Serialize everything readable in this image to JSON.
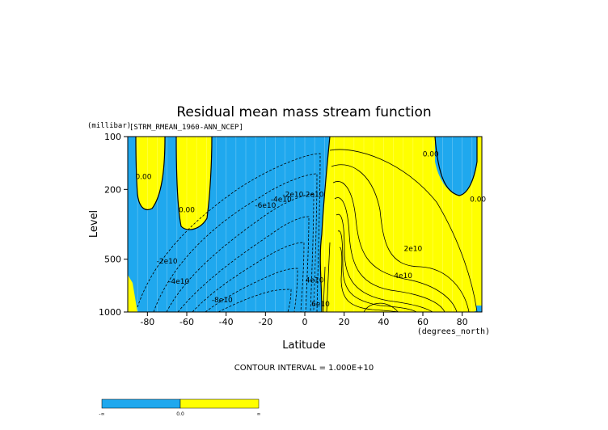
{
  "chart_data": {
    "type": "contour",
    "title": "Residual mean mass stream function",
    "dataset_label": "[STRM_RMEAN_1960-ANN_NCEP]",
    "xlabel": "Latitude",
    "x_units": "(degrees_north)",
    "ylabel": "Level",
    "y_units": "(millibar)",
    "xlim": [
      -90,
      90
    ],
    "ylim": [
      1000,
      100
    ],
    "y_scale": "log",
    "x_ticks": [
      -80,
      -60,
      -40,
      -20,
      0,
      20,
      40,
      60,
      80
    ],
    "y_ticks": [
      100,
      200,
      500,
      1000
    ],
    "contour_interval_text": "CONTOUR INTERVAL = 1.000E+10",
    "negative_color": "#1fa8ee",
    "positive_color": "#ffff00",
    "contour_labels": [
      {
        "text": "0.00",
        "lat": -82,
        "lev": 175
      },
      {
        "text": "0.00",
        "lat": -60,
        "lev": 270
      },
      {
        "text": "0.00",
        "lat": 64,
        "lev": 130
      },
      {
        "text": "0.00",
        "lat": 88,
        "lev": 235
      },
      {
        "text": "-2e10",
        "lat": -70,
        "lev": 530
      },
      {
        "text": "-4e10",
        "lat": -64,
        "lev": 690
      },
      {
        "text": "-6e10",
        "lat": -20,
        "lev": 255
      },
      {
        "text": "-4e10",
        "lat": -12,
        "lev": 235
      },
      {
        "text": "-2e10",
        "lat": -6,
        "lev": 220
      },
      {
        "text": "-8e10",
        "lat": -42,
        "lev": 880
      },
      {
        "text": "2e10",
        "lat": 5,
        "lev": 220
      },
      {
        "text": "2e10",
        "lat": 55,
        "lev": 450
      },
      {
        "text": "4e10",
        "lat": 50,
        "lev": 640
      },
      {
        "text": "4e10",
        "lat": 5,
        "lev": 680
      },
      {
        "text": "6e10",
        "lat": 8,
        "lev": 930
      }
    ],
    "colorbar": {
      "labels": [
        "-∞",
        "0.0",
        "∞"
      ]
    }
  }
}
